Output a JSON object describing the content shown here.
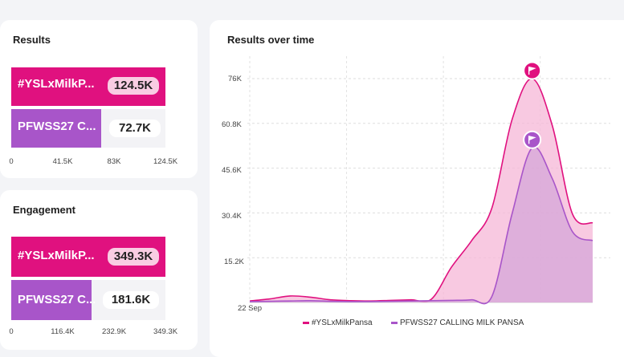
{
  "colors": {
    "primary": "#e0117f",
    "primary_fill": "#f6b7d7",
    "secondary": "#a855c9",
    "secondary_fill": "#d6a5d8"
  },
  "results": {
    "title": "Results",
    "items": [
      {
        "label": "#YSLxMilkP...",
        "value": "124.5K"
      },
      {
        "label": "PFWSS27 C...",
        "value": "72.7K"
      }
    ],
    "ticks": [
      "0",
      "41.5K",
      "83K",
      "124.5K"
    ]
  },
  "engagement": {
    "title": "Engagement",
    "items": [
      {
        "label": "#YSLxMilkP...",
        "value": "349.3K"
      },
      {
        "label": "PFWSS27 C...",
        "value": "181.6K"
      }
    ],
    "ticks": [
      "0",
      "116.4K",
      "232.9K",
      "349.3K"
    ]
  },
  "over_time": {
    "title": "Results over time",
    "flag_icon": "flag-icon"
  },
  "chart_data": [
    {
      "type": "bar",
      "title": "Results",
      "orientation": "horizontal",
      "categories": [
        "#YSLxMilkPansa",
        "PFWSS27 CALLING MILK PANSA"
      ],
      "values": [
        124500,
        72700
      ],
      "xlim": [
        0,
        124500
      ]
    },
    {
      "type": "bar",
      "title": "Engagement",
      "orientation": "horizontal",
      "categories": [
        "#YSLxMilkPansa",
        "PFWSS27 CALLING MILK PANSA"
      ],
      "values": [
        349300,
        181600
      ],
      "xlim": [
        0,
        349300
      ]
    },
    {
      "type": "area",
      "title": "Results over time",
      "x_labels": [
        "22 Sep"
      ],
      "y_ticks": [
        "76K",
        "60.8K",
        "45.6K",
        "30.4K",
        "15.2K"
      ],
      "ylim": [
        0,
        76000
      ],
      "x": [
        0,
        1,
        2,
        3,
        4,
        5,
        6,
        7,
        8,
        9,
        10,
        11,
        12,
        13,
        14,
        15,
        16,
        17
      ],
      "series": [
        {
          "name": "#YSLxMilkPansa",
          "values": [
            500,
            1200,
            2200,
            1800,
            900,
            600,
            500,
            700,
            900,
            1100,
            12000,
            21000,
            32000,
            62000,
            76000,
            60000,
            30000,
            27000
          ]
        },
        {
          "name": "PFWSS27 CALLING MILK PANSA",
          "values": [
            300,
            400,
            500,
            600,
            400,
            300,
            300,
            400,
            500,
            600,
            700,
            900,
            2000,
            30000,
            52500,
            42000,
            24000,
            21000
          ]
        }
      ],
      "grid": true,
      "legend_position": "bottom"
    }
  ]
}
